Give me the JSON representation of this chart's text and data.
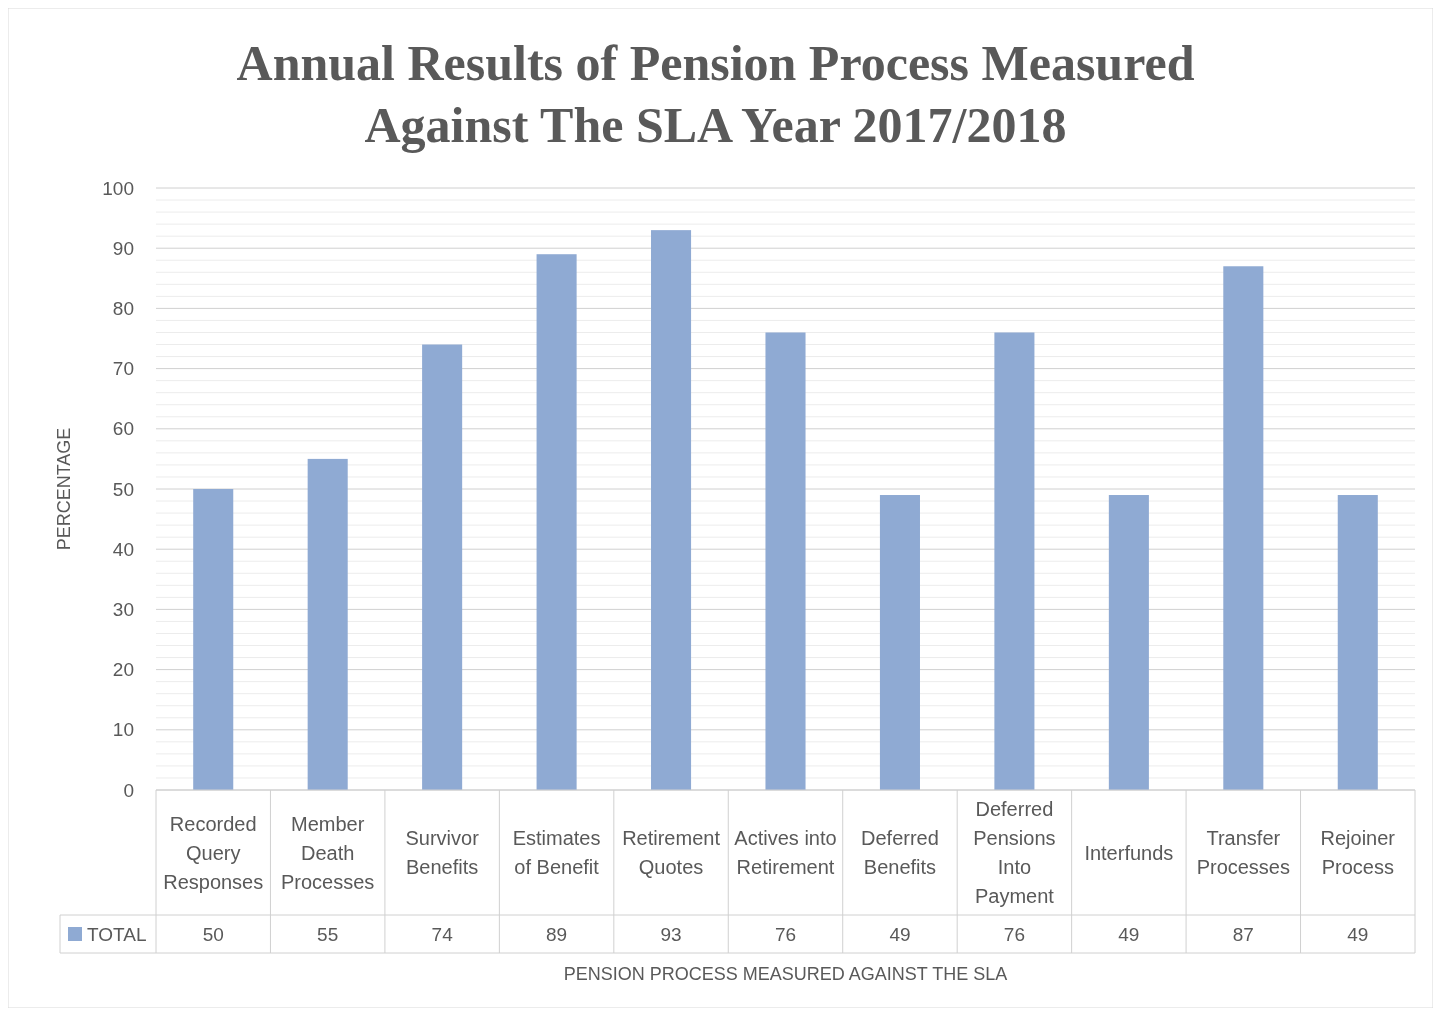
{
  "chart_data": {
    "type": "bar",
    "title": "Annual Results of Pension Process Measured Against The SLA Year 2017/2018",
    "xlabel": "PENSION PROCESS MEASURED AGAINST THE SLA",
    "ylabel": "PERCENTAGE",
    "categories": [
      "Recorded Query Responses",
      "Member Death Processes",
      "Survivor Benefits",
      "Estimates of Benefit",
      "Retirement Quotes",
      "Actives into Retirement",
      "Deferred Benefits",
      "Deferred Pensions Into Payment",
      "Interfunds",
      "Transfer Processes",
      "Rejoiner Process"
    ],
    "series": [
      {
        "name": "TOTAL",
        "color": "#8faad3",
        "values": [
          50,
          55,
          74,
          89,
          93,
          76,
          49,
          76,
          49,
          87,
          49
        ]
      }
    ],
    "ylim": [
      0,
      100
    ],
    "yticks": [
      0,
      {
        "value": 2,
        "label": null
      },
      {
        "value": 4,
        "label": null
      },
      {
        "value": 6,
        "label": null
      },
      {
        "value": 8,
        "label": null
      },
      10,
      {
        "value": 12,
        "label": null
      },
      {
        "value": 14,
        "label": null
      },
      {
        "value": 16,
        "label": null
      },
      {
        "value": 18,
        "label": null
      },
      20,
      {
        "value": 22,
        "label": null
      },
      {
        "value": 24,
        "label": null
      },
      {
        "value": 26,
        "label": null
      },
      {
        "value": 28,
        "label": null
      },
      30,
      {
        "value": 32,
        "label": null
      },
      {
        "value": 34,
        "label": null
      },
      {
        "value": 36,
        "label": null
      },
      {
        "value": 38,
        "label": null
      },
      40,
      {
        "value": 42,
        "label": null
      },
      {
        "value": 44,
        "label": null
      },
      {
        "value": 46,
        "label": null
      },
      {
        "value": 48,
        "label": null
      },
      50,
      {
        "value": 52,
        "label": null
      },
      {
        "value": 54,
        "label": null
      },
      {
        "value": 56,
        "label": null
      },
      {
        "value": 58,
        "label": null
      },
      60,
      {
        "value": 62,
        "label": null
      },
      {
        "value": 64,
        "label": null
      },
      {
        "value": 66,
        "label": null
      },
      {
        "value": 68,
        "label": null
      },
      70,
      {
        "value": 72,
        "label": null
      },
      {
        "value": 74,
        "label": null
      },
      {
        "value": 76,
        "label": null
      },
      {
        "value": 78,
        "label": null
      },
      80,
      {
        "value": 82,
        "label": null
      },
      {
        "value": 84,
        "label": null
      },
      {
        "value": 86,
        "label": null
      },
      {
        "value": 88,
        "label": null
      },
      90,
      {
        "value": 92,
        "label": null
      },
      {
        "value": 94,
        "label": null
      },
      {
        "value": 96,
        "label": null
      },
      {
        "value": 98,
        "label": null
      },
      100
    ],
    "grid": true,
    "legend": "bottom",
    "data_labels": true
  }
}
